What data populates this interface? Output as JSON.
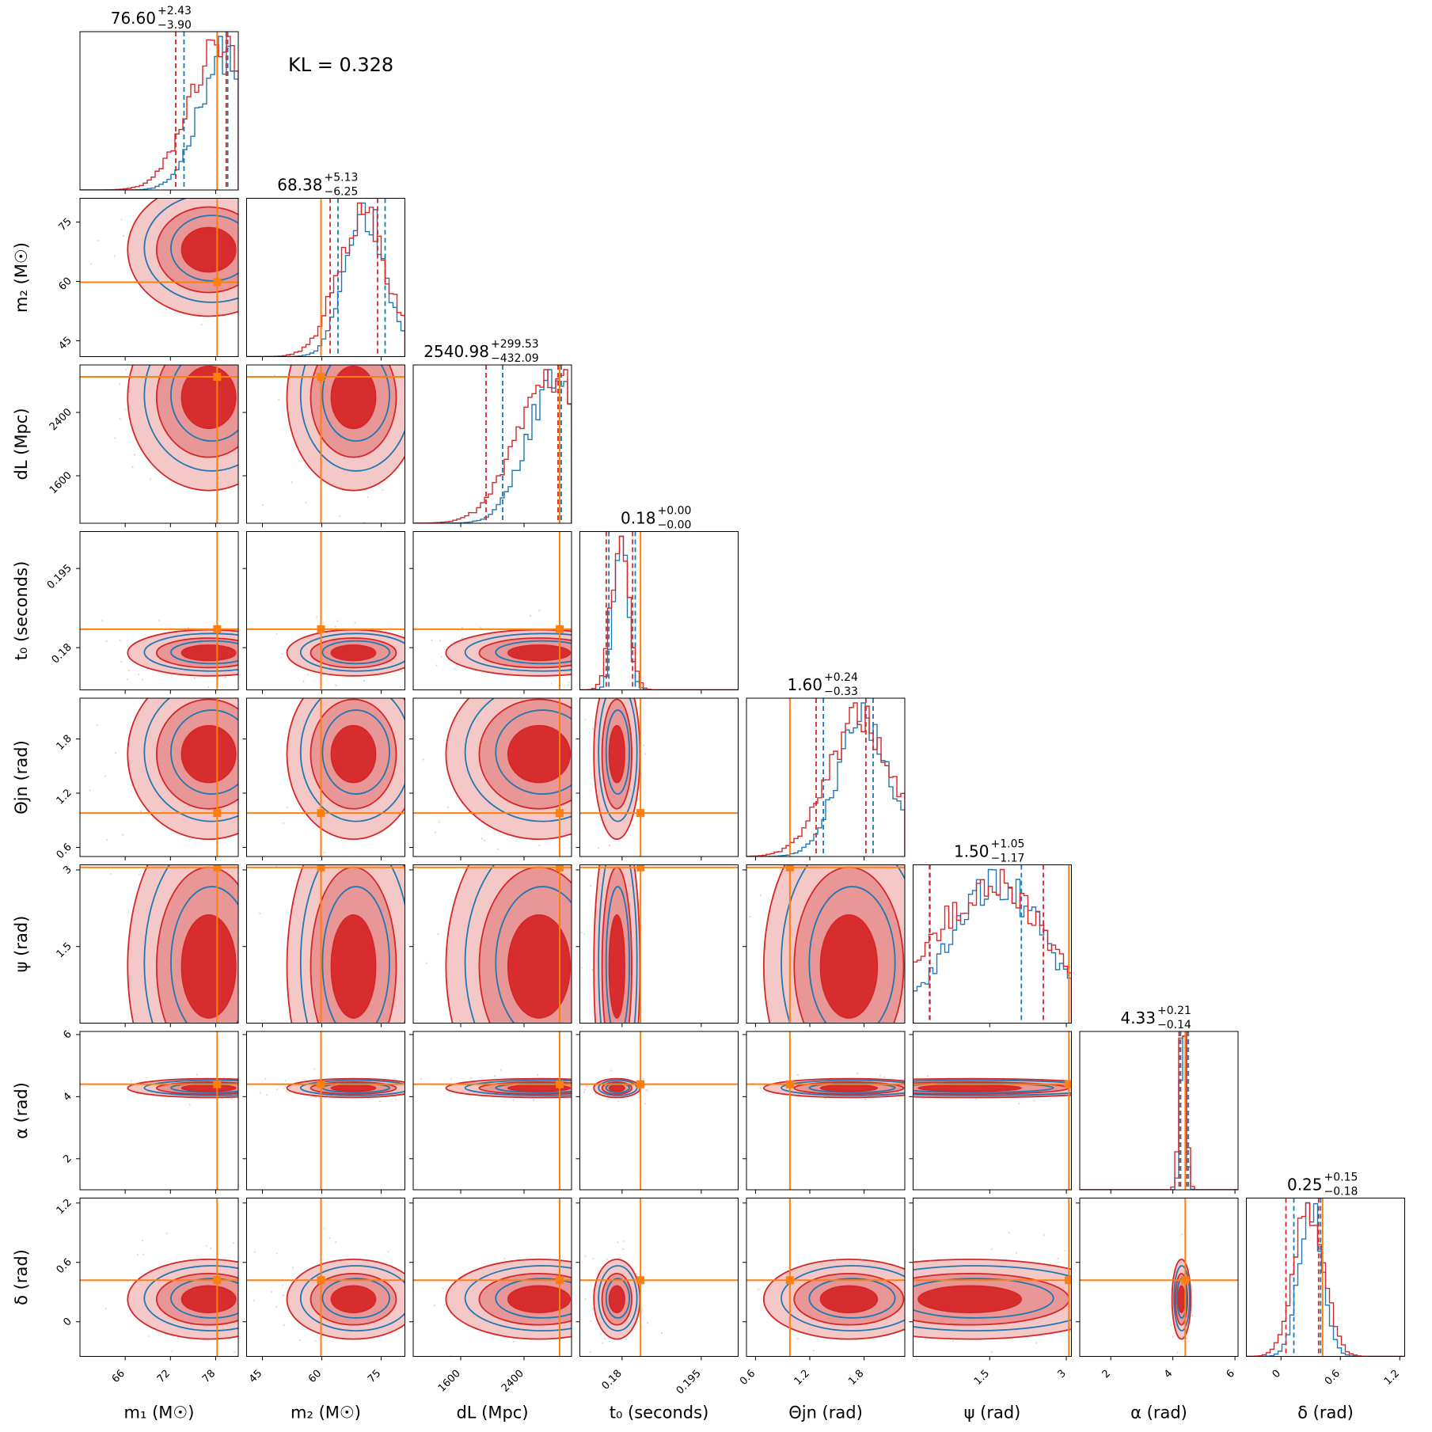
{
  "kl_text": "KL = 0.328",
  "colors": {
    "model_a": "#1f77b4",
    "model_b": "#d62728",
    "injection": "#ff7f0e"
  },
  "chart_data": {
    "type": "corner",
    "grid": false,
    "params": [
      {
        "key": "m1",
        "label": "m₁ (M☉)",
        "range": [
          60,
          81
        ],
        "ticks": [
          66,
          72,
          78
        ],
        "inj": 78.2,
        "title_val": "76.60",
        "title_plus": "+2.43",
        "title_minus": "−3.90",
        "q": {
          "blue": [
            73.8,
            79.6
          ],
          "red": [
            72.7,
            79.4
          ]
        },
        "hist_mode": 79,
        "hist_sd": 3.2
      },
      {
        "key": "m2",
        "label": "m₂ (M☉)",
        "range": [
          41,
          81
        ],
        "ticks": [
          45,
          60,
          75
        ],
        "inj": 59.8,
        "title_val": "68.38",
        "title_plus": "+5.13",
        "title_minus": "−6.25",
        "q": {
          "blue": [
            64.1,
            76.0
          ],
          "red": [
            62.1,
            74.1
          ]
        },
        "hist_mode": 71,
        "hist_sd": 5.0
      },
      {
        "key": "dL",
        "label": "dL (Mpc)",
        "range": [
          1000,
          3000
        ],
        "ticks": [
          1600,
          2400
        ],
        "inj": 2850,
        "title_val": "2540.98",
        "title_plus": "+299.53",
        "title_minus": "−432.09",
        "q": {
          "blue": [
            2130,
            2870
          ],
          "red": [
            1920,
            2830
          ]
        },
        "hist_mode": 2800,
        "hist_sd": 350
      },
      {
        "key": "t0",
        "label": "t₀ (seconds)",
        "range": [
          0.172,
          0.202
        ],
        "ticks": [
          0.18,
          0.195
        ],
        "inj": 0.1835,
        "title_val": "0.18",
        "title_plus": "+0.00",
        "title_minus": "−0.00",
        "q": {
          "blue": [
            0.1775,
            0.1825
          ],
          "red": [
            0.177,
            0.182
          ]
        },
        "hist_mode": 0.1798,
        "hist_sd": 0.0013
      },
      {
        "key": "theta",
        "label": "Θjn (rad)",
        "range": [
          0.5,
          2.25
        ],
        "ticks": [
          0.6,
          1.2,
          1.8
        ],
        "inj": 0.98,
        "title_val": "1.60",
        "title_plus": "+0.24",
        "title_minus": "−0.33",
        "q": {
          "blue": [
            1.35,
            1.9
          ],
          "red": [
            1.27,
            1.82
          ]
        },
        "hist_mode": 1.8,
        "hist_sd": 0.28
      },
      {
        "key": "psi",
        "label": "ψ (rad)",
        "range": [
          0.0,
          3.1
        ],
        "ticks": [
          1.5,
          3.0
        ],
        "inj": 3.05,
        "title_val": "1.50",
        "title_plus": "+1.05",
        "title_minus": "−1.17",
        "q": {
          "blue": [
            0.32,
            2.12
          ],
          "red": [
            0.33,
            2.55
          ]
        },
        "hist_mode": 1.65,
        "hist_sd": 0.9
      },
      {
        "key": "alpha",
        "label": "α (rad)",
        "range": [
          1.0,
          6.1
        ],
        "ticks": [
          2,
          4,
          6
        ],
        "inj": 4.4,
        "title_val": "4.33",
        "title_plus": "+0.21",
        "title_minus": "−0.14",
        "q": {
          "blue": [
            4.25,
            4.5
          ],
          "red": [
            4.2,
            4.45
          ]
        },
        "hist_mode": 4.33,
        "hist_sd": 0.09
      },
      {
        "key": "delta",
        "label": "δ (rad)",
        "range": [
          -0.35,
          1.25
        ],
        "ticks": [
          0.0,
          0.6,
          1.2
        ],
        "inj": 0.42,
        "title_val": "0.25",
        "title_plus": "+0.15",
        "title_minus": "−0.18",
        "q": {
          "blue": [
            0.13,
            0.4
          ],
          "red": [
            0.05,
            0.38
          ]
        },
        "hist_mode": 0.3,
        "hist_sd": 0.12
      }
    ]
  }
}
